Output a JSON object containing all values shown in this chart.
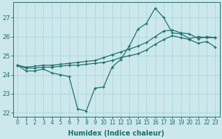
{
  "xlabel": "Humidex (Indice chaleur)",
  "bg_color": "#cce8ec",
  "line_color": "#1a6e6a",
  "grid_color": "#b0d8dc",
  "x": [
    0,
    1,
    2,
    3,
    4,
    5,
    6,
    7,
    8,
    9,
    10,
    11,
    12,
    13,
    14,
    15,
    16,
    17,
    18,
    19,
    20,
    21,
    22,
    23
  ],
  "y_main": [
    24.5,
    24.2,
    24.2,
    24.3,
    24.1,
    24.0,
    23.9,
    22.2,
    22.1,
    23.3,
    23.35,
    24.4,
    24.8,
    25.5,
    26.4,
    26.7,
    27.5,
    27.0,
    26.2,
    26.15,
    25.9,
    26.0,
    25.95,
    25.95
  ],
  "y_upper": [
    24.5,
    24.4,
    24.45,
    24.5,
    24.5,
    24.55,
    24.6,
    24.65,
    24.7,
    24.75,
    24.9,
    25.05,
    25.2,
    25.35,
    25.5,
    25.7,
    26.0,
    26.3,
    26.35,
    26.2,
    26.15,
    25.9,
    26.0,
    25.95
  ],
  "y_lower": [
    24.5,
    24.35,
    24.35,
    24.4,
    24.4,
    24.45,
    24.5,
    24.5,
    24.55,
    24.6,
    24.65,
    24.75,
    24.9,
    25.0,
    25.1,
    25.3,
    25.6,
    25.85,
    26.05,
    25.95,
    25.85,
    25.65,
    25.75,
    25.45
  ],
  "ylim": [
    21.8,
    27.8
  ],
  "xlim": [
    -0.5,
    23.5
  ],
  "yticks": [
    22,
    23,
    24,
    25,
    26,
    27
  ],
  "xticks": [
    0,
    1,
    2,
    3,
    4,
    5,
    6,
    7,
    8,
    9,
    10,
    11,
    12,
    13,
    14,
    15,
    16,
    17,
    18,
    19,
    20,
    21,
    22,
    23
  ],
  "figsize": [
    3.2,
    2.0
  ],
  "dpi": 100
}
